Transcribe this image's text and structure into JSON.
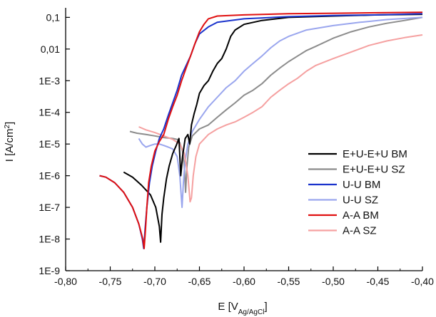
{
  "chart_data": {
    "type": "line",
    "title": "",
    "xlabel": {
      "main": "E [V",
      "sub": "Ag/AgCl",
      "close": "]"
    },
    "ylabel": {
      "main": "I [A/cm",
      "sup": "2",
      "close": "]"
    },
    "x_log": false,
    "y_log": true,
    "xlim": [
      -0.8,
      -0.4
    ],
    "ylim": [
      1e-09,
      0.2
    ],
    "x_ticks": [
      -0.8,
      -0.75,
      -0.7,
      -0.65,
      -0.6,
      -0.55,
      -0.5,
      -0.45,
      -0.4
    ],
    "x_tick_labels": [
      "-0,80",
      "-0,75",
      "-0,70",
      "-0,65",
      "-0,60",
      "-0,55",
      "-0,50",
      "-0,45",
      "-0,40"
    ],
    "y_ticks": [
      1e-09,
      1e-08,
      1e-07,
      1e-06,
      1e-05,
      0.0001,
      0.001,
      0.01,
      0.1
    ],
    "y_tick_labels": [
      "1E-9",
      "1E-8",
      "1E-7",
      "1E-6",
      "1E-5",
      "1E-4",
      "1E-3",
      "0,01",
      "0,1"
    ],
    "grid": false,
    "legend_position": "right",
    "series": [
      {
        "name": "E+U-E+U BM",
        "color": "#000000",
        "points": [
          [
            -0.735,
            1.3e-06
          ],
          [
            -0.725,
            9e-07
          ],
          [
            -0.715,
            5e-07
          ],
          [
            -0.705,
            2.5e-07
          ],
          [
            -0.699,
            1e-07
          ],
          [
            -0.695,
            2.5e-08
          ],
          [
            -0.6935,
            8e-09
          ],
          [
            -0.692,
            6e-08
          ],
          [
            -0.69,
            2e-07
          ],
          [
            -0.687,
            8e-07
          ],
          [
            -0.684,
            2e-06
          ],
          [
            -0.68,
            5e-06
          ],
          [
            -0.676,
            9e-06
          ],
          [
            -0.673,
            1.5e-05
          ],
          [
            -0.671,
            1e-06
          ],
          [
            -0.669,
            4e-06
          ],
          [
            -0.666,
            1.5e-05
          ],
          [
            -0.663,
            2e-05
          ],
          [
            -0.661,
            1e-05
          ],
          [
            -0.659,
            4e-05
          ],
          [
            -0.656,
            9e-05
          ],
          [
            -0.653,
            0.00018
          ],
          [
            -0.65,
            0.0004
          ],
          [
            -0.645,
            0.0007
          ],
          [
            -0.64,
            0.001
          ],
          [
            -0.635,
            0.002
          ],
          [
            -0.63,
            0.0035
          ],
          [
            -0.625,
            0.005
          ],
          [
            -0.62,
            0.01
          ],
          [
            -0.615,
            0.025
          ],
          [
            -0.61,
            0.04
          ],
          [
            -0.6,
            0.06
          ],
          [
            -0.58,
            0.08
          ],
          [
            -0.55,
            0.1
          ],
          [
            -0.5,
            0.11
          ],
          [
            -0.45,
            0.12
          ],
          [
            -0.4,
            0.125
          ]
        ]
      },
      {
        "name": "E+U-E+U SZ",
        "color": "#8c8c8c",
        "points": [
          [
            -0.728,
            2.5e-05
          ],
          [
            -0.72,
            2.2e-05
          ],
          [
            -0.71,
            2e-05
          ],
          [
            -0.7,
            1.8e-05
          ],
          [
            -0.69,
            1.6e-05
          ],
          [
            -0.68,
            1.5e-05
          ],
          [
            -0.675,
            1.4e-05
          ],
          [
            -0.672,
            1.1e-05
          ],
          [
            -0.669,
            6e-06
          ],
          [
            -0.667,
            2e-06
          ],
          [
            -0.6655,
            3e-07
          ],
          [
            -0.664,
            2e-06
          ],
          [
            -0.662,
            8e-06
          ],
          [
            -0.658,
            1.8e-05
          ],
          [
            -0.65,
            3e-05
          ],
          [
            -0.64,
            4e-05
          ],
          [
            -0.63,
            7e-05
          ],
          [
            -0.62,
            0.00012
          ],
          [
            -0.61,
            0.0002
          ],
          [
            -0.6,
            0.00035
          ],
          [
            -0.59,
            0.0005
          ],
          [
            -0.58,
            0.0008
          ],
          [
            -0.57,
            0.0015
          ],
          [
            -0.56,
            0.0025
          ],
          [
            -0.55,
            0.004
          ],
          [
            -0.54,
            0.006
          ],
          [
            -0.53,
            0.009
          ],
          [
            -0.52,
            0.012
          ],
          [
            -0.5,
            0.022
          ],
          [
            -0.48,
            0.035
          ],
          [
            -0.46,
            0.05
          ],
          [
            -0.44,
            0.065
          ],
          [
            -0.42,
            0.08
          ],
          [
            -0.4,
            0.1
          ]
        ]
      },
      {
        "name": "U-U BM",
        "color": "#1a33cc",
        "points": [
          [
            -0.762,
            1e-06
          ],
          [
            -0.755,
            9e-07
          ],
          [
            -0.745,
            6e-07
          ],
          [
            -0.735,
            3e-07
          ],
          [
            -0.725,
            1e-07
          ],
          [
            -0.718,
            3e-08
          ],
          [
            -0.714,
            1e-08
          ],
          [
            -0.7125,
            5e-09
          ],
          [
            -0.711,
            2e-08
          ],
          [
            -0.709,
            1e-07
          ],
          [
            -0.706,
            6e-07
          ],
          [
            -0.703,
            2e-06
          ],
          [
            -0.699,
            6e-06
          ],
          [
            -0.695,
            1.5e-05
          ],
          [
            -0.69,
            3e-05
          ],
          [
            -0.685,
            8e-05
          ],
          [
            -0.68,
            0.0002
          ],
          [
            -0.675,
            0.0005
          ],
          [
            -0.67,
            0.0015
          ],
          [
            -0.665,
            0.003
          ],
          [
            -0.66,
            0.006
          ],
          [
            -0.655,
            0.015
          ],
          [
            -0.65,
            0.03
          ],
          [
            -0.64,
            0.05
          ],
          [
            -0.63,
            0.07
          ],
          [
            -0.6,
            0.09
          ],
          [
            -0.55,
            0.105
          ],
          [
            -0.5,
            0.115
          ],
          [
            -0.45,
            0.12
          ],
          [
            -0.4,
            0.13
          ]
        ]
      },
      {
        "name": "U-U SZ",
        "color": "#9aa6ee",
        "points": [
          [
            -0.718,
            1.5e-05
          ],
          [
            -0.714,
            1e-05
          ],
          [
            -0.71,
            8e-06
          ],
          [
            -0.705,
            9e-06
          ],
          [
            -0.7,
            1e-05
          ],
          [
            -0.695,
            1e-05
          ],
          [
            -0.69,
            9e-06
          ],
          [
            -0.685,
            8e-06
          ],
          [
            -0.68,
            7e-06
          ],
          [
            -0.675,
            4e-06
          ],
          [
            -0.672,
            1e-06
          ],
          [
            -0.6695,
            1e-07
          ],
          [
            -0.668,
            6e-07
          ],
          [
            -0.666,
            3e-06
          ],
          [
            -0.663,
            1e-05
          ],
          [
            -0.658,
            2.5e-05
          ],
          [
            -0.65,
            6e-05
          ],
          [
            -0.64,
            0.00015
          ],
          [
            -0.63,
            0.0003
          ],
          [
            -0.62,
            0.0006
          ],
          [
            -0.61,
            0.001
          ],
          [
            -0.6,
            0.002
          ],
          [
            -0.59,
            0.0035
          ],
          [
            -0.58,
            0.006
          ],
          [
            -0.57,
            0.011
          ],
          [
            -0.56,
            0.018
          ],
          [
            -0.55,
            0.025
          ],
          [
            -0.53,
            0.04
          ],
          [
            -0.5,
            0.055
          ],
          [
            -0.47,
            0.07
          ],
          [
            -0.44,
            0.085
          ],
          [
            -0.4,
            0.1
          ]
        ]
      },
      {
        "name": "A-A BM",
        "color": "#e01010",
        "points": [
          [
            -0.762,
            1e-06
          ],
          [
            -0.755,
            9e-07
          ],
          [
            -0.745,
            6e-07
          ],
          [
            -0.735,
            3e-07
          ],
          [
            -0.725,
            1e-07
          ],
          [
            -0.718,
            3e-08
          ],
          [
            -0.7135,
            1e-08
          ],
          [
            -0.712,
            5e-09
          ],
          [
            -0.7105,
            2e-08
          ],
          [
            -0.709,
            1e-07
          ],
          [
            -0.707,
            6e-07
          ],
          [
            -0.704,
            2e-06
          ],
          [
            -0.7,
            6e-06
          ],
          [
            -0.695,
            1.2e-05
          ],
          [
            -0.69,
            2e-05
          ],
          [
            -0.685,
            6e-05
          ],
          [
            -0.68,
            0.00015
          ],
          [
            -0.675,
            0.00035
          ],
          [
            -0.67,
            0.001
          ],
          [
            -0.665,
            0.0025
          ],
          [
            -0.66,
            0.006
          ],
          [
            -0.655,
            0.015
          ],
          [
            -0.65,
            0.035
          ],
          [
            -0.645,
            0.06
          ],
          [
            -0.64,
            0.09
          ],
          [
            -0.63,
            0.11
          ],
          [
            -0.6,
            0.12
          ],
          [
            -0.55,
            0.13
          ],
          [
            -0.5,
            0.135
          ],
          [
            -0.45,
            0.14
          ],
          [
            -0.4,
            0.145
          ]
        ]
      },
      {
        "name": "A-A SZ",
        "color": "#f5a0a0",
        "points": [
          [
            -0.718,
            3.5e-05
          ],
          [
            -0.71,
            2.8e-05
          ],
          [
            -0.7,
            2.3e-05
          ],
          [
            -0.69,
            1.8e-05
          ],
          [
            -0.68,
            1.4e-05
          ],
          [
            -0.672,
            1e-05
          ],
          [
            -0.667,
            5e-06
          ],
          [
            -0.663,
            1e-06
          ],
          [
            -0.6605,
            1.5e-07
          ],
          [
            -0.659,
            2e-07
          ],
          [
            -0.657,
            1e-06
          ],
          [
            -0.654,
            4e-06
          ],
          [
            -0.65,
            1e-05
          ],
          [
            -0.64,
            2e-05
          ],
          [
            -0.63,
            3e-05
          ],
          [
            -0.62,
            4e-05
          ],
          [
            -0.61,
            5e-05
          ],
          [
            -0.6,
            7e-05
          ],
          [
            -0.59,
            0.0001
          ],
          [
            -0.58,
            0.00015
          ],
          [
            -0.57,
            0.0003
          ],
          [
            -0.56,
            0.0005
          ],
          [
            -0.55,
            0.0008
          ],
          [
            -0.54,
            0.0012
          ],
          [
            -0.53,
            0.002
          ],
          [
            -0.52,
            0.003
          ],
          [
            -0.5,
            0.005
          ],
          [
            -0.48,
            0.008
          ],
          [
            -0.46,
            0.013
          ],
          [
            -0.44,
            0.018
          ],
          [
            -0.42,
            0.023
          ],
          [
            -0.4,
            0.028
          ]
        ]
      }
    ]
  }
}
